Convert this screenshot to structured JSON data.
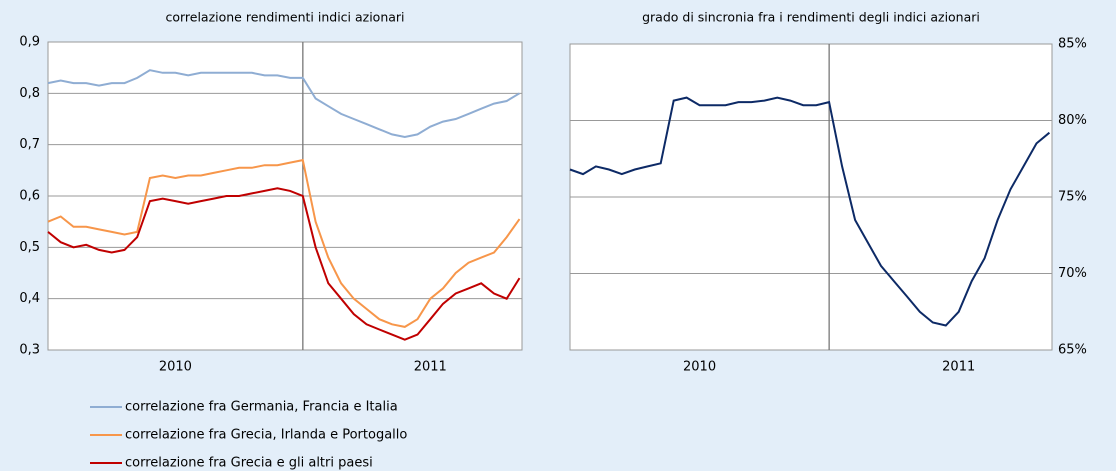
{
  "chart_data": [
    {
      "type": "line",
      "title": "correlazione rendimenti indici azionari",
      "x": [
        2010.0,
        2010.05,
        2010.1,
        2010.15,
        2010.2,
        2010.25,
        2010.3,
        2010.35,
        2010.4,
        2010.45,
        2010.5,
        2010.55,
        2010.6,
        2010.65,
        2010.7,
        2010.75,
        2010.8,
        2010.85,
        2010.9,
        2010.95,
        2011.0,
        2011.05,
        2011.1,
        2011.15,
        2011.2,
        2011.25,
        2011.3,
        2011.35,
        2011.4,
        2011.45,
        2011.5,
        2011.55,
        2011.6,
        2011.65,
        2011.7,
        2011.75,
        2011.8,
        2011.85
      ],
      "series": [
        {
          "name": "correlazione fra Germania, Francia e Italia",
          "color": "#8fadd3",
          "values": [
            0.82,
            0.825,
            0.82,
            0.82,
            0.815,
            0.82,
            0.82,
            0.83,
            0.845,
            0.84,
            0.84,
            0.835,
            0.84,
            0.84,
            0.84,
            0.84,
            0.84,
            0.835,
            0.835,
            0.83,
            0.83,
            0.79,
            0.775,
            0.76,
            0.75,
            0.74,
            0.73,
            0.72,
            0.715,
            0.72,
            0.735,
            0.745,
            0.75,
            0.76,
            0.77,
            0.78,
            0.785,
            0.8
          ]
        },
        {
          "name": "correlazione fra Grecia, Irlanda e Portogallo",
          "color": "#f7964a",
          "values": [
            0.55,
            0.56,
            0.54,
            0.54,
            0.535,
            0.53,
            0.525,
            0.53,
            0.635,
            0.64,
            0.635,
            0.64,
            0.64,
            0.645,
            0.65,
            0.655,
            0.655,
            0.66,
            0.66,
            0.665,
            0.67,
            0.55,
            0.48,
            0.43,
            0.4,
            0.38,
            0.36,
            0.35,
            0.345,
            0.36,
            0.4,
            0.42,
            0.45,
            0.47,
            0.48,
            0.49,
            0.52,
            0.555
          ]
        },
        {
          "name": "correlazione fra Grecia e gli altri paesi",
          "color": "#c00000",
          "values": [
            0.53,
            0.51,
            0.5,
            0.505,
            0.495,
            0.49,
            0.495,
            0.52,
            0.59,
            0.595,
            0.59,
            0.585,
            0.59,
            0.595,
            0.6,
            0.6,
            0.605,
            0.61,
            0.615,
            0.61,
            0.6,
            0.5,
            0.43,
            0.4,
            0.37,
            0.35,
            0.34,
            0.33,
            0.32,
            0.33,
            0.36,
            0.39,
            0.41,
            0.42,
            0.43,
            0.41,
            0.4,
            0.44
          ]
        }
      ],
      "xlim": [
        2010.0,
        2011.86
      ],
      "xticks": [
        {
          "value": 2010.5,
          "label": "2010"
        },
        {
          "value": 2011.5,
          "label": "2011"
        }
      ],
      "vline": 2011.0,
      "ylim": [
        0.3,
        0.9
      ],
      "yticks": [
        {
          "value": 0.3,
          "label": "0,3"
        },
        {
          "value": 0.4,
          "label": "0,4"
        },
        {
          "value": 0.5,
          "label": "0,5"
        },
        {
          "value": 0.6,
          "label": "0,6"
        },
        {
          "value": 0.7,
          "label": "0,7"
        },
        {
          "value": 0.8,
          "label": "0,8"
        },
        {
          "value": 0.9,
          "label": "0,9"
        }
      ],
      "yaxis_side": "left",
      "grid": true
    },
    {
      "type": "line",
      "title": "grado di sincronia fra i rendimenti degli indici azionari",
      "x": [
        2010.0,
        2010.05,
        2010.1,
        2010.15,
        2010.2,
        2010.25,
        2010.3,
        2010.35,
        2010.4,
        2010.45,
        2010.5,
        2010.55,
        2010.6,
        2010.65,
        2010.7,
        2010.75,
        2010.8,
        2010.85,
        2010.9,
        2010.95,
        2011.0,
        2011.05,
        2011.1,
        2011.15,
        2011.2,
        2011.25,
        2011.3,
        2011.35,
        2011.4,
        2011.45,
        2011.5,
        2011.55,
        2011.6,
        2011.65,
        2011.7,
        2011.75,
        2011.8,
        2011.85
      ],
      "series": [
        {
          "color": "#0d2a66",
          "values": [
            76.8,
            76.5,
            77,
            76.8,
            76.5,
            76.8,
            77,
            77.2,
            81.3,
            81.5,
            81,
            81,
            81,
            81.2,
            81.2,
            81.3,
            81.5,
            81.3,
            81,
            81,
            81.2,
            77,
            73.5,
            72,
            70.5,
            69.5,
            68.5,
            67.5,
            66.8,
            66.6,
            67.5,
            69.5,
            71,
            73.5,
            75.5,
            77,
            78.5,
            79.2
          ]
        }
      ],
      "xlim": [
        2010.0,
        2011.86
      ],
      "xticks": [
        {
          "value": 2010.5,
          "label": "2010"
        },
        {
          "value": 2011.5,
          "label": "2011"
        }
      ],
      "vline": 2011.0,
      "ylim": [
        65,
        85
      ],
      "yticks": [
        {
          "value": 65,
          "label": "65%"
        },
        {
          "value": 70,
          "label": "70%"
        },
        {
          "value": 75,
          "label": "75%"
        },
        {
          "value": 80,
          "label": "80%"
        },
        {
          "value": 85,
          "label": "85%"
        }
      ],
      "yaxis_side": "right",
      "grid": true
    }
  ]
}
